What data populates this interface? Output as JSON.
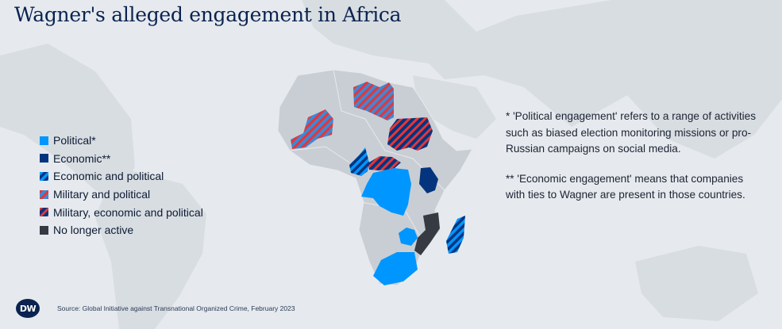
{
  "title": "Wagner's alleged engagement in Africa",
  "colors": {
    "political": "#0096ff",
    "economic": "#05347e",
    "military_accent": "#e0373c",
    "no_longer_active": "#353a43",
    "land": "#c9ced4",
    "world_land": "#d8dde2",
    "background": "#e6eaee"
  },
  "legend": [
    {
      "label": "Political*",
      "pattern": "political"
    },
    {
      "label": "Economic**",
      "pattern": "economic"
    },
    {
      "label": "Economic and political",
      "pattern": "econ-pol"
    },
    {
      "label": "Military and political",
      "pattern": "mil-pol"
    },
    {
      "label": "Military, economic and political",
      "pattern": "mil-econ-pol"
    },
    {
      "label": "No longer active",
      "pattern": "inactive"
    }
  ],
  "notes": {
    "political": "* 'Political engagement' refers to a range of activities such as biased election monitoring missions or pro-Russian campaigns on social media.",
    "economic": "** 'Economic engagement' means that companies with ties to Wagner are present in those countries."
  },
  "countries": [
    {
      "name": "Mali",
      "category": "mil-pol"
    },
    {
      "name": "Libya",
      "category": "mil-pol"
    },
    {
      "name": "Sudan",
      "category": "mil-econ-pol"
    },
    {
      "name": "Central African Republic",
      "category": "mil-econ-pol"
    },
    {
      "name": "Cameroon",
      "category": "econ-pol"
    },
    {
      "name": "DR Congo",
      "category": "political"
    },
    {
      "name": "Kenya",
      "category": "economic"
    },
    {
      "name": "Zimbabwe",
      "category": "political"
    },
    {
      "name": "South Africa",
      "category": "political"
    },
    {
      "name": "Mozambique",
      "category": "inactive"
    },
    {
      "name": "Madagascar",
      "category": "econ-pol"
    }
  ],
  "logo": "DW",
  "source": "Source: Global Initiative against Transnational Organized Crime, February 2023"
}
